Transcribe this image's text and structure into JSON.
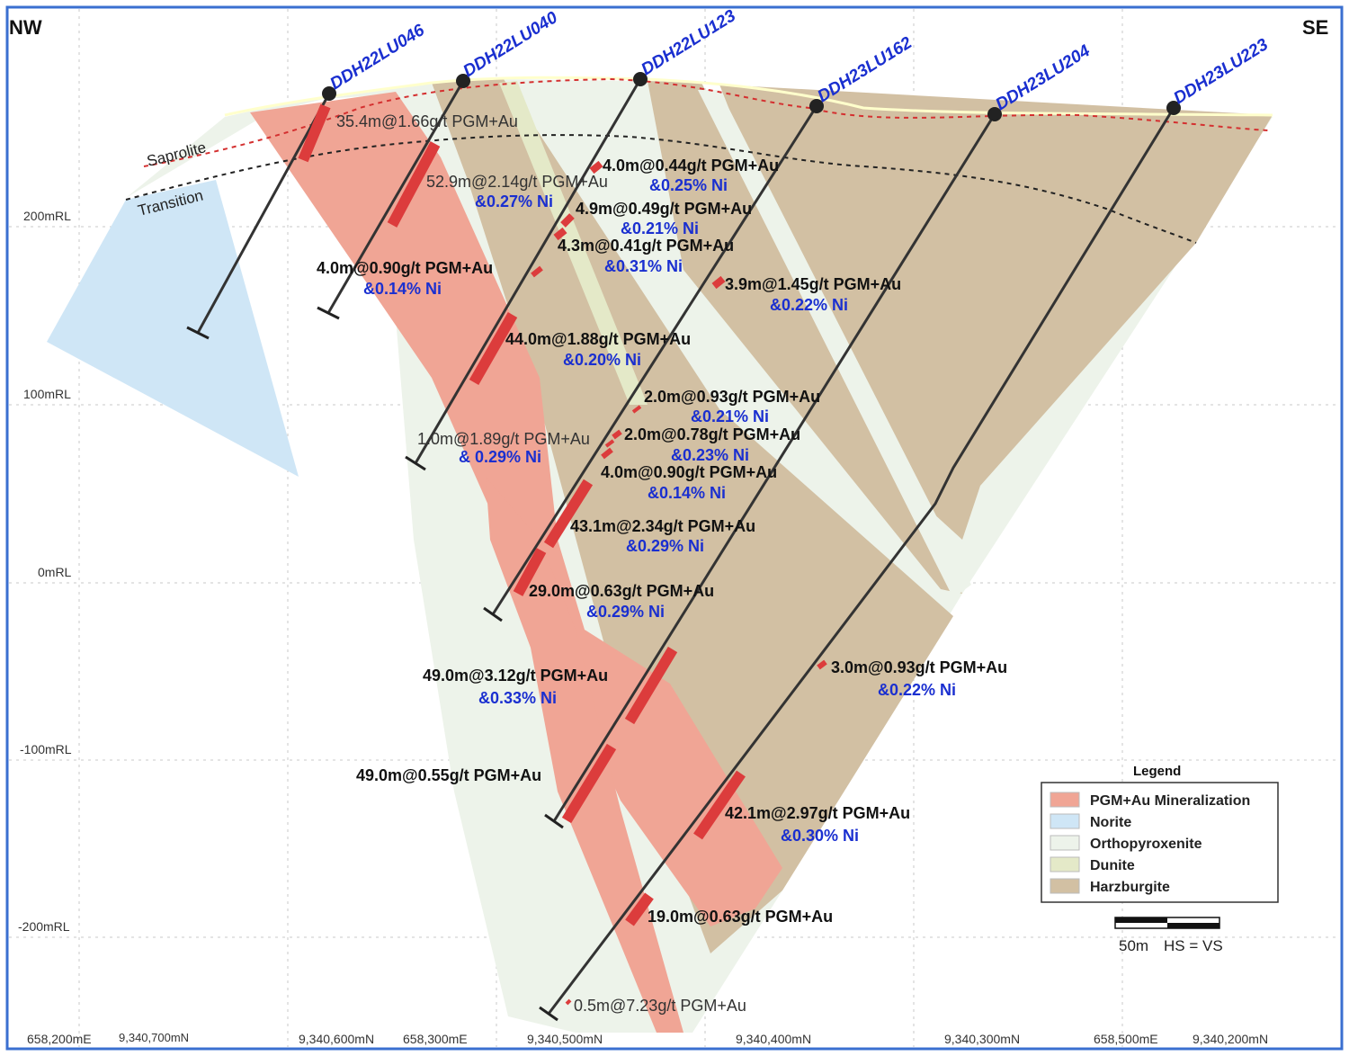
{
  "orientation": {
    "left": "NW",
    "right": "SE"
  },
  "rl_labels": [
    "200mRL",
    "100mRL",
    "0mRL",
    "-100mRL",
    "-200mRL"
  ],
  "bottom_ticks": [
    "658,200mE",
    "9,340,700mN",
    "9,340,600mN",
    "658,300mE",
    "9,340,500mN",
    "9,340,400mN",
    "9,340,300mN",
    "658,500mE",
    "9,340,200mN"
  ],
  "zones": {
    "saprolite": "Saprolite",
    "transition": "Transition"
  },
  "drillholes": [
    "DDH22LU046",
    "DDH22LU040",
    "DDH22LU123",
    "DDH23LU162",
    "DDH23LU204",
    "DDH23LU223"
  ],
  "intercepts": [
    {
      "grade": "35.4m@1.66g/t PGM+Au",
      "ni": ""
    },
    {
      "grade": "52.9m@2.14g/t PGM+Au",
      "ni": "&0.27% Ni"
    },
    {
      "grade": "4.0m@0.44g/t PGM+Au",
      "ni": "&0.25% Ni"
    },
    {
      "grade": "4.9m@0.49g/t PGM+Au",
      "ni": "&0.21% Ni"
    },
    {
      "grade": "4.3m@0.41g/t PGM+Au",
      "ni": "&0.31% Ni"
    },
    {
      "grade": "4.0m@0.90g/t PGM+Au",
      "ni": "&0.14% Ni"
    },
    {
      "grade": "3.9m@1.45g/t PGM+Au",
      "ni": "&0.22% Ni"
    },
    {
      "grade": "44.0m@1.88g/t PGM+Au",
      "ni": "&0.20% Ni"
    },
    {
      "grade": "2.0m@0.93g/t PGM+Au",
      "ni": "&0.21% Ni"
    },
    {
      "grade": "1.0m@1.89g/t PGM+Au",
      "ni": "& 0.29% Ni"
    },
    {
      "grade": "2.0m@0.78g/t PGM+Au",
      "ni": "&0.23% Ni"
    },
    {
      "grade": "4.0m@0.90g/t PGM+Au",
      "ni": "&0.14% Ni"
    },
    {
      "grade": "43.1m@2.34g/t PGM+Au",
      "ni": "&0.29% Ni"
    },
    {
      "grade": "29.0m@0.63g/t PGM+Au",
      "ni": "&0.29% Ni"
    },
    {
      "grade": "49.0m@3.12g/t PGM+Au",
      "ni": "&0.33% Ni"
    },
    {
      "grade": "3.0m@0.93g/t PGM+Au",
      "ni": "&0.22% Ni"
    },
    {
      "grade": "49.0m@0.55g/t PGM+Au",
      "ni": ""
    },
    {
      "grade": "42.1m@2.97g/t PGM+Au",
      "ni": "&0.30% Ni"
    },
    {
      "grade": "19.0m@0.63g/t PGM+Au",
      "ni": ""
    },
    {
      "grade": "0.5m@7.23g/t PGM+Au",
      "ni": ""
    }
  ],
  "legend": {
    "title": "Legend",
    "items": [
      {
        "label": "PGM+Au Mineralization",
        "color": "#f0a595"
      },
      {
        "label": "Norite",
        "color": "#cfe6f6"
      },
      {
        "label": "Orthopyroxenite",
        "color": "#edf3ea"
      },
      {
        "label": "Dunite",
        "color": "#e4e9c8"
      },
      {
        "label": "Harzburgite",
        "color": "#d2c0a3"
      }
    ]
  },
  "scale": {
    "label": "50m",
    "note": "HS = VS"
  },
  "colors": {
    "frame": "#3a6fd0",
    "mineralization": "#f0a595",
    "intercept_bar": "#dc3c3c",
    "norite": "#cfe6f6",
    "orthopyroxenite": "#edf3ea",
    "dunite": "#e4e9c8",
    "harzburgite": "#d2c0a3",
    "drillhole_name": "#1a2fd0",
    "ni_text": "#1a2fd0",
    "saprolite_line": "#d43030",
    "transition_line": "#222222"
  }
}
